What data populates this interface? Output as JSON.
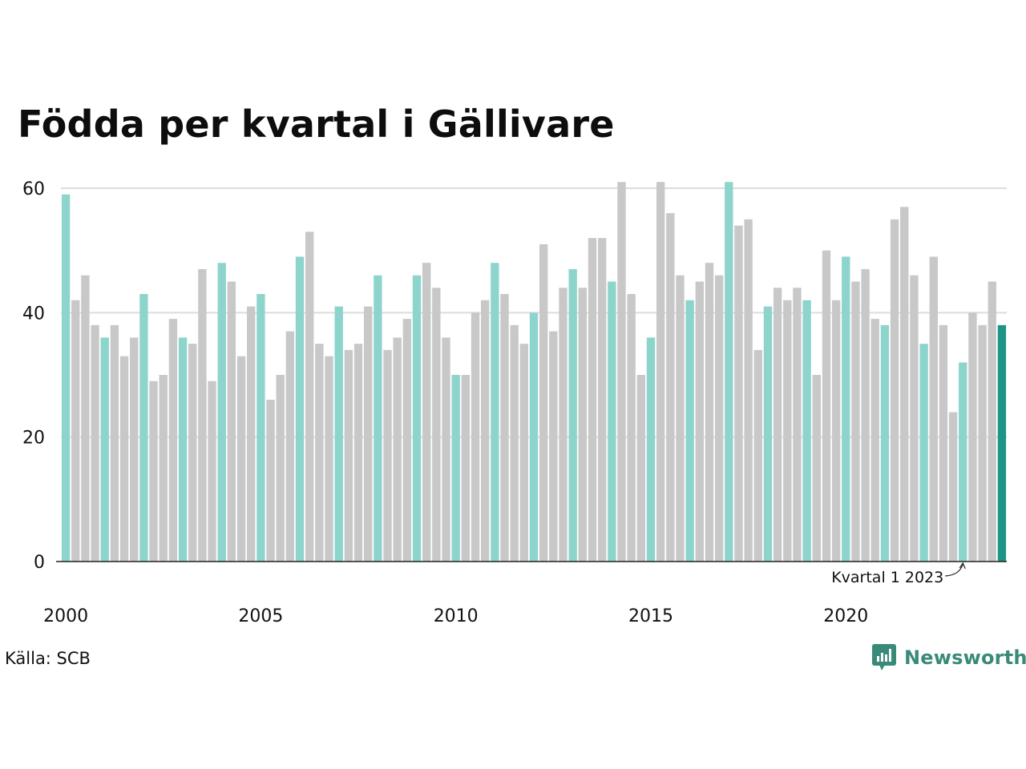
{
  "title": "Födda per kvartal i Gällivare",
  "source": "Källa: SCB",
  "brand": {
    "name": "Newsworthy",
    "icon": "newsworthy-logo-icon"
  },
  "colors": {
    "highlight_q1": "#8dd5cc",
    "other": "#c8c8c8",
    "latest": "#1e9486",
    "grid": "#dddddd",
    "axis": "#222222"
  },
  "chart_data": {
    "type": "bar",
    "title": "Födda per kvartal i Gällivare",
    "x_start": "2000 Q1",
    "x_end": "2024 Q1",
    "values": [
      59,
      42,
      46,
      38,
      36,
      38,
      33,
      36,
      43,
      29,
      30,
      39,
      36,
      35,
      47,
      29,
      48,
      45,
      33,
      41,
      43,
      26,
      30,
      37,
      49,
      53,
      35,
      33,
      41,
      34,
      35,
      41,
      46,
      34,
      36,
      39,
      46,
      48,
      44,
      36,
      30,
      30,
      40,
      42,
      48,
      43,
      38,
      35,
      40,
      51,
      37,
      44,
      47,
      44,
      52,
      52,
      45,
      61,
      43,
      30,
      36,
      61,
      56,
      46,
      42,
      45,
      48,
      46,
      61,
      54,
      55,
      34,
      41,
      44,
      42,
      44,
      42,
      30,
      50,
      42,
      49,
      45,
      47,
      39,
      38,
      55,
      57,
      46,
      35,
      49,
      38,
      24,
      32,
      40,
      38,
      45,
      38
    ],
    "highlight": "quarter 1 bars highlighted; latest bar dark",
    "y_ticks": [
      0,
      20,
      40,
      60
    ],
    "ylim": [
      0,
      61
    ],
    "x_tick_labels": [
      "2000",
      "2005",
      "2010",
      "2015",
      "2020"
    ],
    "grid": true,
    "annotation": "Kvartal 1 2023"
  }
}
